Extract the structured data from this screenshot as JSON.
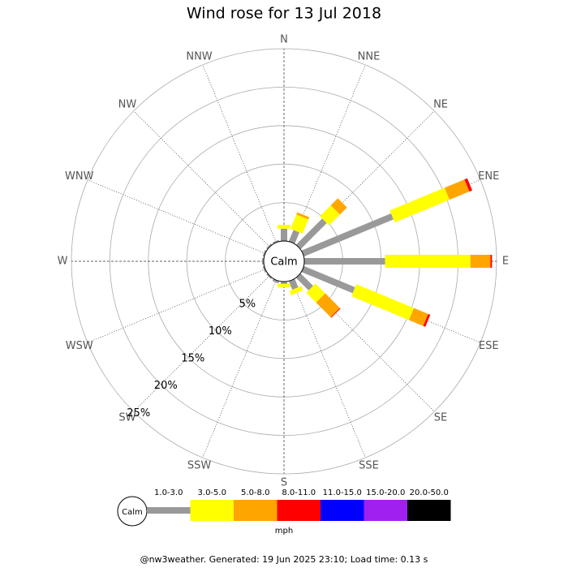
{
  "chart_data": {
    "type": "windrose",
    "title": "Wind rose for 13 Jul 2018",
    "categories": [
      "N",
      "NNE",
      "NE",
      "ENE",
      "E",
      "ESE",
      "SE",
      "SSE",
      "S",
      "SSW",
      "SW",
      "WSW",
      "W",
      "WNW",
      "NW",
      "NNW"
    ],
    "series": [
      {
        "name": "1.0-3.0",
        "color": "#999999",
        "values": [
          1.6,
          1.6,
          4.8,
          12.6,
          10.5,
          7.2,
          2.3,
          1.2,
          0.3,
          0.3,
          0.2,
          0.2,
          0.2,
          0.2,
          0.2,
          0.2
        ]
      },
      {
        "name": "3.0-5.0",
        "color": "#ffff00",
        "values": [
          0.5,
          2.0,
          2.0,
          7.7,
          11.1,
          8.1,
          1.8,
          0.6,
          0.4,
          0,
          0,
          0,
          0,
          0,
          0,
          0
        ]
      },
      {
        "name": "5.0-8.0",
        "color": "#ffa500",
        "values": [
          0,
          0.3,
          1.3,
          2.8,
          2.6,
          2.0,
          2.7,
          0,
          0,
          0,
          0,
          0,
          0,
          0,
          0,
          0
        ]
      },
      {
        "name": "8.0-11.0",
        "color": "#ff0000",
        "values": [
          0,
          0,
          0,
          0.4,
          0.2,
          0.3,
          0.1,
          0,
          0,
          0,
          0,
          0,
          0,
          0,
          0,
          0
        ]
      },
      {
        "name": "11.0-15.0",
        "color": "#0000ff",
        "values": [
          0,
          0,
          0,
          0,
          0,
          0,
          0,
          0,
          0,
          0,
          0,
          0,
          0,
          0,
          0,
          0
        ]
      },
      {
        "name": "15.0-20.0",
        "color": "#a020f0",
        "values": [
          0,
          0,
          0,
          0,
          0,
          0,
          0,
          0,
          0,
          0,
          0,
          0,
          0,
          0,
          0,
          0
        ]
      },
      {
        "name": "20.0-50.0",
        "color": "#000000",
        "values": [
          0,
          0,
          0,
          0,
          0,
          0,
          0,
          0,
          0,
          0,
          0,
          0,
          0,
          0,
          0,
          0
        ]
      }
    ],
    "rlim": [
      0,
      25
    ],
    "rticks": [
      {
        "value": 5,
        "label": "5%"
      },
      {
        "value": 10,
        "label": "10%"
      },
      {
        "value": 15,
        "label": "15%"
      },
      {
        "value": 20,
        "label": "20%"
      },
      {
        "value": 25,
        "label": "25%"
      }
    ],
    "calm_label": "Calm",
    "units": "mph",
    "footer": "@nw3weather. Generated: 19 Jun 2025 23:10; Load time: 0.13 s"
  }
}
